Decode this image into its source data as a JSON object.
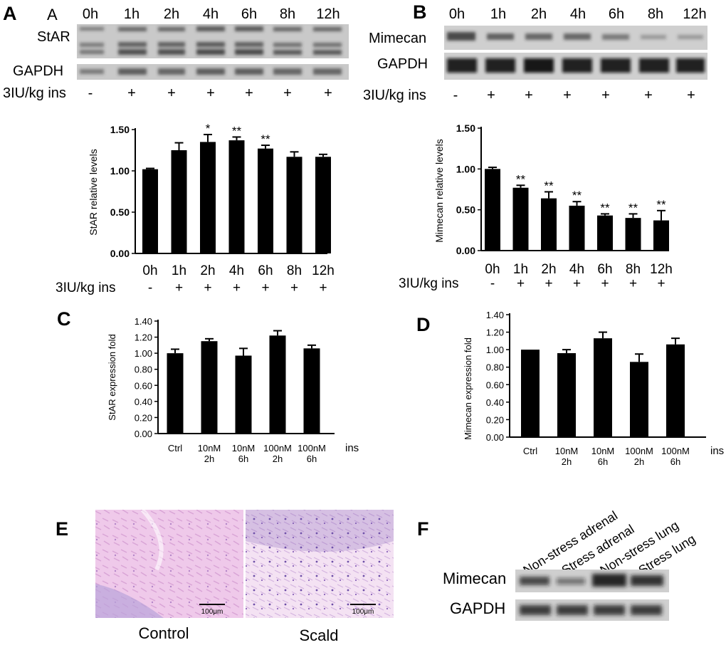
{
  "panels": {
    "A": {
      "letter": "A",
      "sub_letter": "A",
      "blot_labels": [
        "StAR",
        "GAPDH"
      ],
      "timepoints": [
        "0h",
        "1h",
        "2h",
        "4h",
        "6h",
        "8h",
        "12h"
      ],
      "treatment_label": "3IU/kg ins",
      "treatment_marks": [
        "-",
        "+",
        "+",
        "+",
        "+",
        "+",
        "+"
      ]
    },
    "B": {
      "letter": "B",
      "blot_labels": [
        "Mimecan",
        "GAPDH"
      ],
      "timepoints": [
        "0h",
        "1h",
        "2h",
        "4h",
        "6h",
        "8h",
        "12h"
      ],
      "treatment_label": "3IU/kg ins",
      "treatment_marks": [
        "-",
        "+",
        "+",
        "+",
        "+",
        "+",
        "+"
      ]
    },
    "C": {
      "letter": "C"
    },
    "D": {
      "letter": "D"
    },
    "E": {
      "letter": "E",
      "captions": [
        "Control",
        "Scald"
      ],
      "scale_bar": "100μm"
    },
    "F": {
      "letter": "F",
      "lane_labels": [
        "Non-stress adrenal",
        "Stress adrenal",
        "Non-stress lung",
        "Stress lung"
      ],
      "blot_labels": [
        "Mimecan",
        "GAPDH"
      ]
    }
  },
  "chart_data": [
    {
      "id": "A",
      "type": "bar",
      "ylabel": "StAR relative levels",
      "categories": [
        "0h",
        "1h",
        "2h",
        "4h",
        "6h",
        "8h",
        "12h"
      ],
      "values": [
        1.02,
        1.25,
        1.35,
        1.37,
        1.27,
        1.17,
        1.17
      ],
      "errors": [
        0.01,
        0.09,
        0.09,
        0.04,
        0.04,
        0.06,
        0.03
      ],
      "annotations": [
        "",
        "",
        "*",
        "**",
        "**",
        "",
        ""
      ],
      "ylim": [
        0,
        1.5
      ],
      "yticks": [
        "0.00",
        "0.50",
        "1.00",
        "1.50"
      ],
      "treatment_label": "3IU/kg ins",
      "treatment_marks": [
        "-",
        "+",
        "+",
        "+",
        "+",
        "+",
        "+"
      ],
      "bar_color": "#000000"
    },
    {
      "id": "B",
      "type": "bar",
      "ylabel": "Mimecan relative levels",
      "categories": [
        "0h",
        "1h",
        "2h",
        "4h",
        "6h",
        "8h",
        "12h"
      ],
      "values": [
        1.0,
        0.77,
        0.64,
        0.55,
        0.43,
        0.4,
        0.37
      ],
      "errors": [
        0.02,
        0.03,
        0.08,
        0.05,
        0.02,
        0.05,
        0.12
      ],
      "annotations": [
        "",
        "**",
        "**",
        "**",
        "**",
        "**",
        "**"
      ],
      "ylim": [
        0,
        1.5
      ],
      "yticks": [
        "0.00",
        "0.50",
        "1.00",
        "1.50"
      ],
      "treatment_label": "3IU/kg ins",
      "treatment_marks": [
        "-",
        "+",
        "+",
        "+",
        "+",
        "+",
        "+"
      ],
      "bar_color": "#000000"
    },
    {
      "id": "C",
      "type": "bar",
      "ylabel": "StAR expression fold",
      "categories": [
        [
          "Ctrl"
        ],
        [
          "10nM",
          "2h"
        ],
        [
          "10nM",
          "6h"
        ],
        [
          "100nM",
          "2h"
        ],
        [
          "100nM",
          "6h"
        ]
      ],
      "values": [
        1.0,
        1.15,
        0.97,
        1.22,
        1.06
      ],
      "errors": [
        0.05,
        0.03,
        0.09,
        0.06,
        0.04
      ],
      "ylim": [
        0,
        1.4
      ],
      "yticks": [
        "0.00",
        "0.20",
        "0.40",
        "0.60",
        "0.80",
        "1.00",
        "1.20",
        "1.40"
      ],
      "x_suffix": "ins",
      "bar_color": "#000000"
    },
    {
      "id": "D",
      "type": "bar",
      "ylabel": "Mimecan expression fold",
      "categories": [
        [
          "Ctrl"
        ],
        [
          "10nM",
          "2h"
        ],
        [
          "10nM",
          "6h"
        ],
        [
          "100nM",
          "2h"
        ],
        [
          "100nM",
          "6h"
        ]
      ],
      "values": [
        1.0,
        0.96,
        1.13,
        0.86,
        1.06
      ],
      "errors": [
        0.0,
        0.04,
        0.07,
        0.09,
        0.07
      ],
      "ylim": [
        0,
        1.4
      ],
      "yticks": [
        "0.00",
        "0.20",
        "0.40",
        "0.60",
        "0.80",
        "1.00",
        "1.20",
        "1.40"
      ],
      "x_suffix": "ins",
      "bar_color": "#000000"
    }
  ]
}
